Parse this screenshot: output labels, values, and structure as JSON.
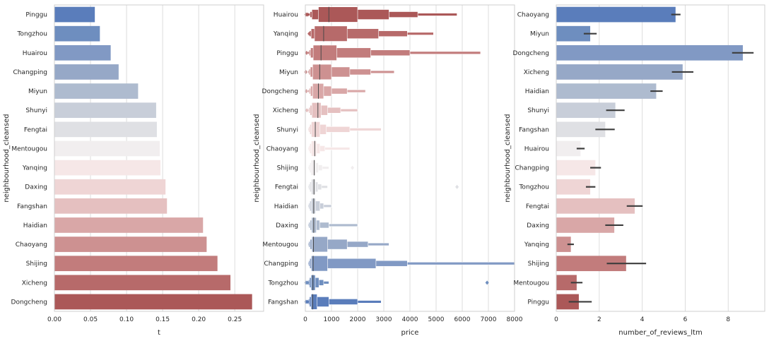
{
  "chart_data": [
    {
      "type": "bar",
      "orientation": "horizontal",
      "ylabel": "neighbourhood_cleansed",
      "xlabel": "t",
      "xlim": [
        0,
        0.29
      ],
      "xticks": [
        "0.00",
        "0.05",
        "0.10",
        "0.15",
        "0.20",
        "0.25"
      ],
      "xtick_values": [
        0,
        0.05,
        0.1,
        0.15,
        0.2,
        0.25
      ],
      "grid": "vertical",
      "categories": [
        "Pinggu",
        "Tongzhou",
        "Huairou",
        "Changping",
        "Miyun",
        "Shunyi",
        "Fengtai",
        "Mentougou",
        "Yanqing",
        "Daxing",
        "Fangshan",
        "Haidian",
        "Chaoyang",
        "Shijing",
        "Xicheng",
        "Dongcheng"
      ],
      "values": [
        0.056,
        0.063,
        0.078,
        0.089,
        0.116,
        0.141,
        0.142,
        0.146,
        0.147,
        0.154,
        0.156,
        0.206,
        0.211,
        0.226,
        0.244,
        0.274
      ],
      "colors": [
        "#5a7dbb",
        "#6e8ebf",
        "#8199c4",
        "#96a8c7",
        "#aebbcf",
        "#c8ced9",
        "#dfe0e4",
        "#f1eeef",
        "#f6e7e7",
        "#efd5d5",
        "#e5c0c0",
        "#d9a7a7",
        "#cd9191",
        "#c27c7c",
        "#b76a6a",
        "#ab5858"
      ]
    },
    {
      "type": "boxen",
      "orientation": "horizontal",
      "ylabel": "neighbourhood_cleansed",
      "xlabel": "price",
      "xlim": [
        0,
        8000
      ],
      "xticks": [
        "0",
        "1000",
        "2000",
        "3000",
        "4000",
        "5000",
        "6000",
        "7000",
        "8000"
      ],
      "xtick_values": [
        0,
        1000,
        2000,
        3000,
        4000,
        5000,
        6000,
        7000,
        8000
      ],
      "grid": "vertical",
      "categories": [
        "Huairou",
        "Yanqing",
        "Pinggu",
        "Miyun",
        "Dongcheng",
        "Xicheng",
        "Shunyi",
        "Chaoyang",
        "Shijing",
        "Fengtai",
        "Haidian",
        "Daxing",
        "Mentougou",
        "Changping",
        "Tongzhou",
        "Fangshan"
      ],
      "medians": [
        900,
        700,
        600,
        550,
        500,
        480,
        380,
        360,
        340,
        330,
        320,
        320,
        310,
        300,
        290,
        280
      ],
      "boxes": [
        [
          [
            500,
            2000
          ],
          [
            250,
            3200
          ],
          [
            180,
            4300
          ],
          [
            120,
            5800
          ]
        ],
        [
          [
            350,
            1600
          ],
          [
            220,
            2800
          ],
          [
            160,
            3900
          ],
          [
            120,
            4900
          ]
        ],
        [
          [
            300,
            1200
          ],
          [
            200,
            2500
          ],
          [
            150,
            4000
          ],
          [
            100,
            6700
          ]
        ],
        [
          [
            280,
            1000
          ],
          [
            190,
            1700
          ],
          [
            140,
            2500
          ],
          [
            100,
            3400
          ]
        ],
        [
          [
            280,
            700
          ],
          [
            200,
            1000
          ],
          [
            150,
            1600
          ],
          [
            100,
            2300
          ]
        ],
        [
          [
            250,
            600
          ],
          [
            180,
            850
          ],
          [
            130,
            1350
          ],
          [
            100,
            2000
          ]
        ],
        [
          [
            230,
            560
          ],
          [
            170,
            800
          ],
          [
            130,
            1700
          ],
          [
            100,
            2900
          ]
        ],
        [
          [
            230,
            430
          ],
          [
            170,
            560
          ],
          [
            130,
            750
          ],
          [
            100,
            1700
          ]
        ],
        [
          [
            220,
            400
          ],
          [
            170,
            500
          ],
          [
            130,
            650
          ],
          [
            100,
            900
          ]
        ],
        [
          [
            230,
            390
          ],
          [
            170,
            480
          ],
          [
            130,
            620
          ],
          [
            100,
            850
          ]
        ],
        [
          [
            230,
            390
          ],
          [
            170,
            560
          ],
          [
            130,
            700
          ],
          [
            100,
            1000
          ]
        ],
        [
          [
            240,
            420
          ],
          [
            180,
            550
          ],
          [
            130,
            900
          ],
          [
            100,
            2000
          ]
        ],
        [
          [
            250,
            850
          ],
          [
            180,
            1600
          ],
          [
            130,
            2400
          ],
          [
            100,
            3200
          ]
        ],
        [
          [
            230,
            850
          ],
          [
            170,
            2700
          ],
          [
            130,
            3900
          ],
          [
            100,
            8000
          ]
        ],
        [
          [
            220,
            380
          ],
          [
            160,
            520
          ],
          [
            120,
            700
          ],
          [
            100,
            900
          ]
        ],
        [
          [
            220,
            450
          ],
          [
            160,
            900
          ],
          [
            120,
            2000
          ],
          [
            100,
            2900
          ]
        ]
      ],
      "outliers": [
        [
          [
            30
          ],
          [
            90
          ]
        ],
        [
          [
            150
          ]
        ],
        [
          [
            50
          ]
        ],
        [
          [
            20
          ]
        ],
        [
          [
            40
          ]
        ],
        [
          [
            60
          ]
        ],
        [],
        [],
        [
          [
            1800
          ]
        ],
        [
          [
            5800
          ]
        ],
        [],
        [],
        [],
        [],
        [
          [
            30
          ],
          [
            90
          ],
          [
            6950
          ]
        ],
        [
          [
            30
          ],
          [
            90
          ]
        ]
      ],
      "colors": [
        "#ab5858",
        "#b76a6a",
        "#c27c7c",
        "#cd9191",
        "#d9a7a7",
        "#e5c0c0",
        "#efd5d5",
        "#f6e7e7",
        "#f1eeef",
        "#dfe0e4",
        "#c8ced9",
        "#aebbcf",
        "#96a8c7",
        "#8199c4",
        "#6e8ebf",
        "#5a7dbb"
      ]
    },
    {
      "type": "bar",
      "orientation": "horizontal",
      "ylabel": "neighbourhood_cleansed",
      "xlabel": "number_of_reviews_ltm",
      "xlim": [
        0,
        9.7
      ],
      "xticks": [
        "0",
        "2",
        "4",
        "6",
        "8"
      ],
      "xtick_values": [
        0,
        2,
        4,
        6,
        8
      ],
      "grid": "vertical",
      "categories": [
        "Chaoyang",
        "Miyun",
        "Dongcheng",
        "Xicheng",
        "Haidian",
        "Shunyi",
        "Fangshan",
        "Huairou",
        "Changping",
        "Tongzhou",
        "Fengtai",
        "Daxing",
        "Yanqing",
        "Shijing",
        "Mentougou",
        "Pinggu"
      ],
      "values": [
        5.55,
        1.58,
        8.68,
        5.88,
        4.65,
        2.75,
        2.28,
        1.13,
        1.82,
        1.58,
        3.65,
        2.7,
        0.68,
        3.25,
        0.95,
        1.05
      ],
      "ci": [
        [
          5.35,
          5.78
        ],
        [
          1.28,
          1.88
        ],
        [
          8.18,
          9.18
        ],
        [
          5.38,
          6.38
        ],
        [
          4.38,
          4.95
        ],
        [
          2.32,
          3.18
        ],
        [
          1.82,
          2.72
        ],
        [
          0.95,
          1.32
        ],
        [
          1.58,
          2.08
        ],
        [
          1.38,
          1.82
        ],
        [
          3.28,
          4.02
        ],
        [
          2.28,
          3.12
        ],
        [
          0.52,
          0.82
        ],
        [
          2.35,
          4.18
        ],
        [
          0.68,
          1.22
        ],
        [
          0.58,
          1.65
        ]
      ],
      "colors": [
        "#5a7dbb",
        "#6e8ebf",
        "#8199c4",
        "#96a8c7",
        "#aebbcf",
        "#c8ced9",
        "#dfe0e4",
        "#f1eeef",
        "#f6e7e7",
        "#efd5d5",
        "#e5c0c0",
        "#d9a7a7",
        "#cd9191",
        "#c27c7c",
        "#b76a6a",
        "#ab5858"
      ]
    }
  ]
}
